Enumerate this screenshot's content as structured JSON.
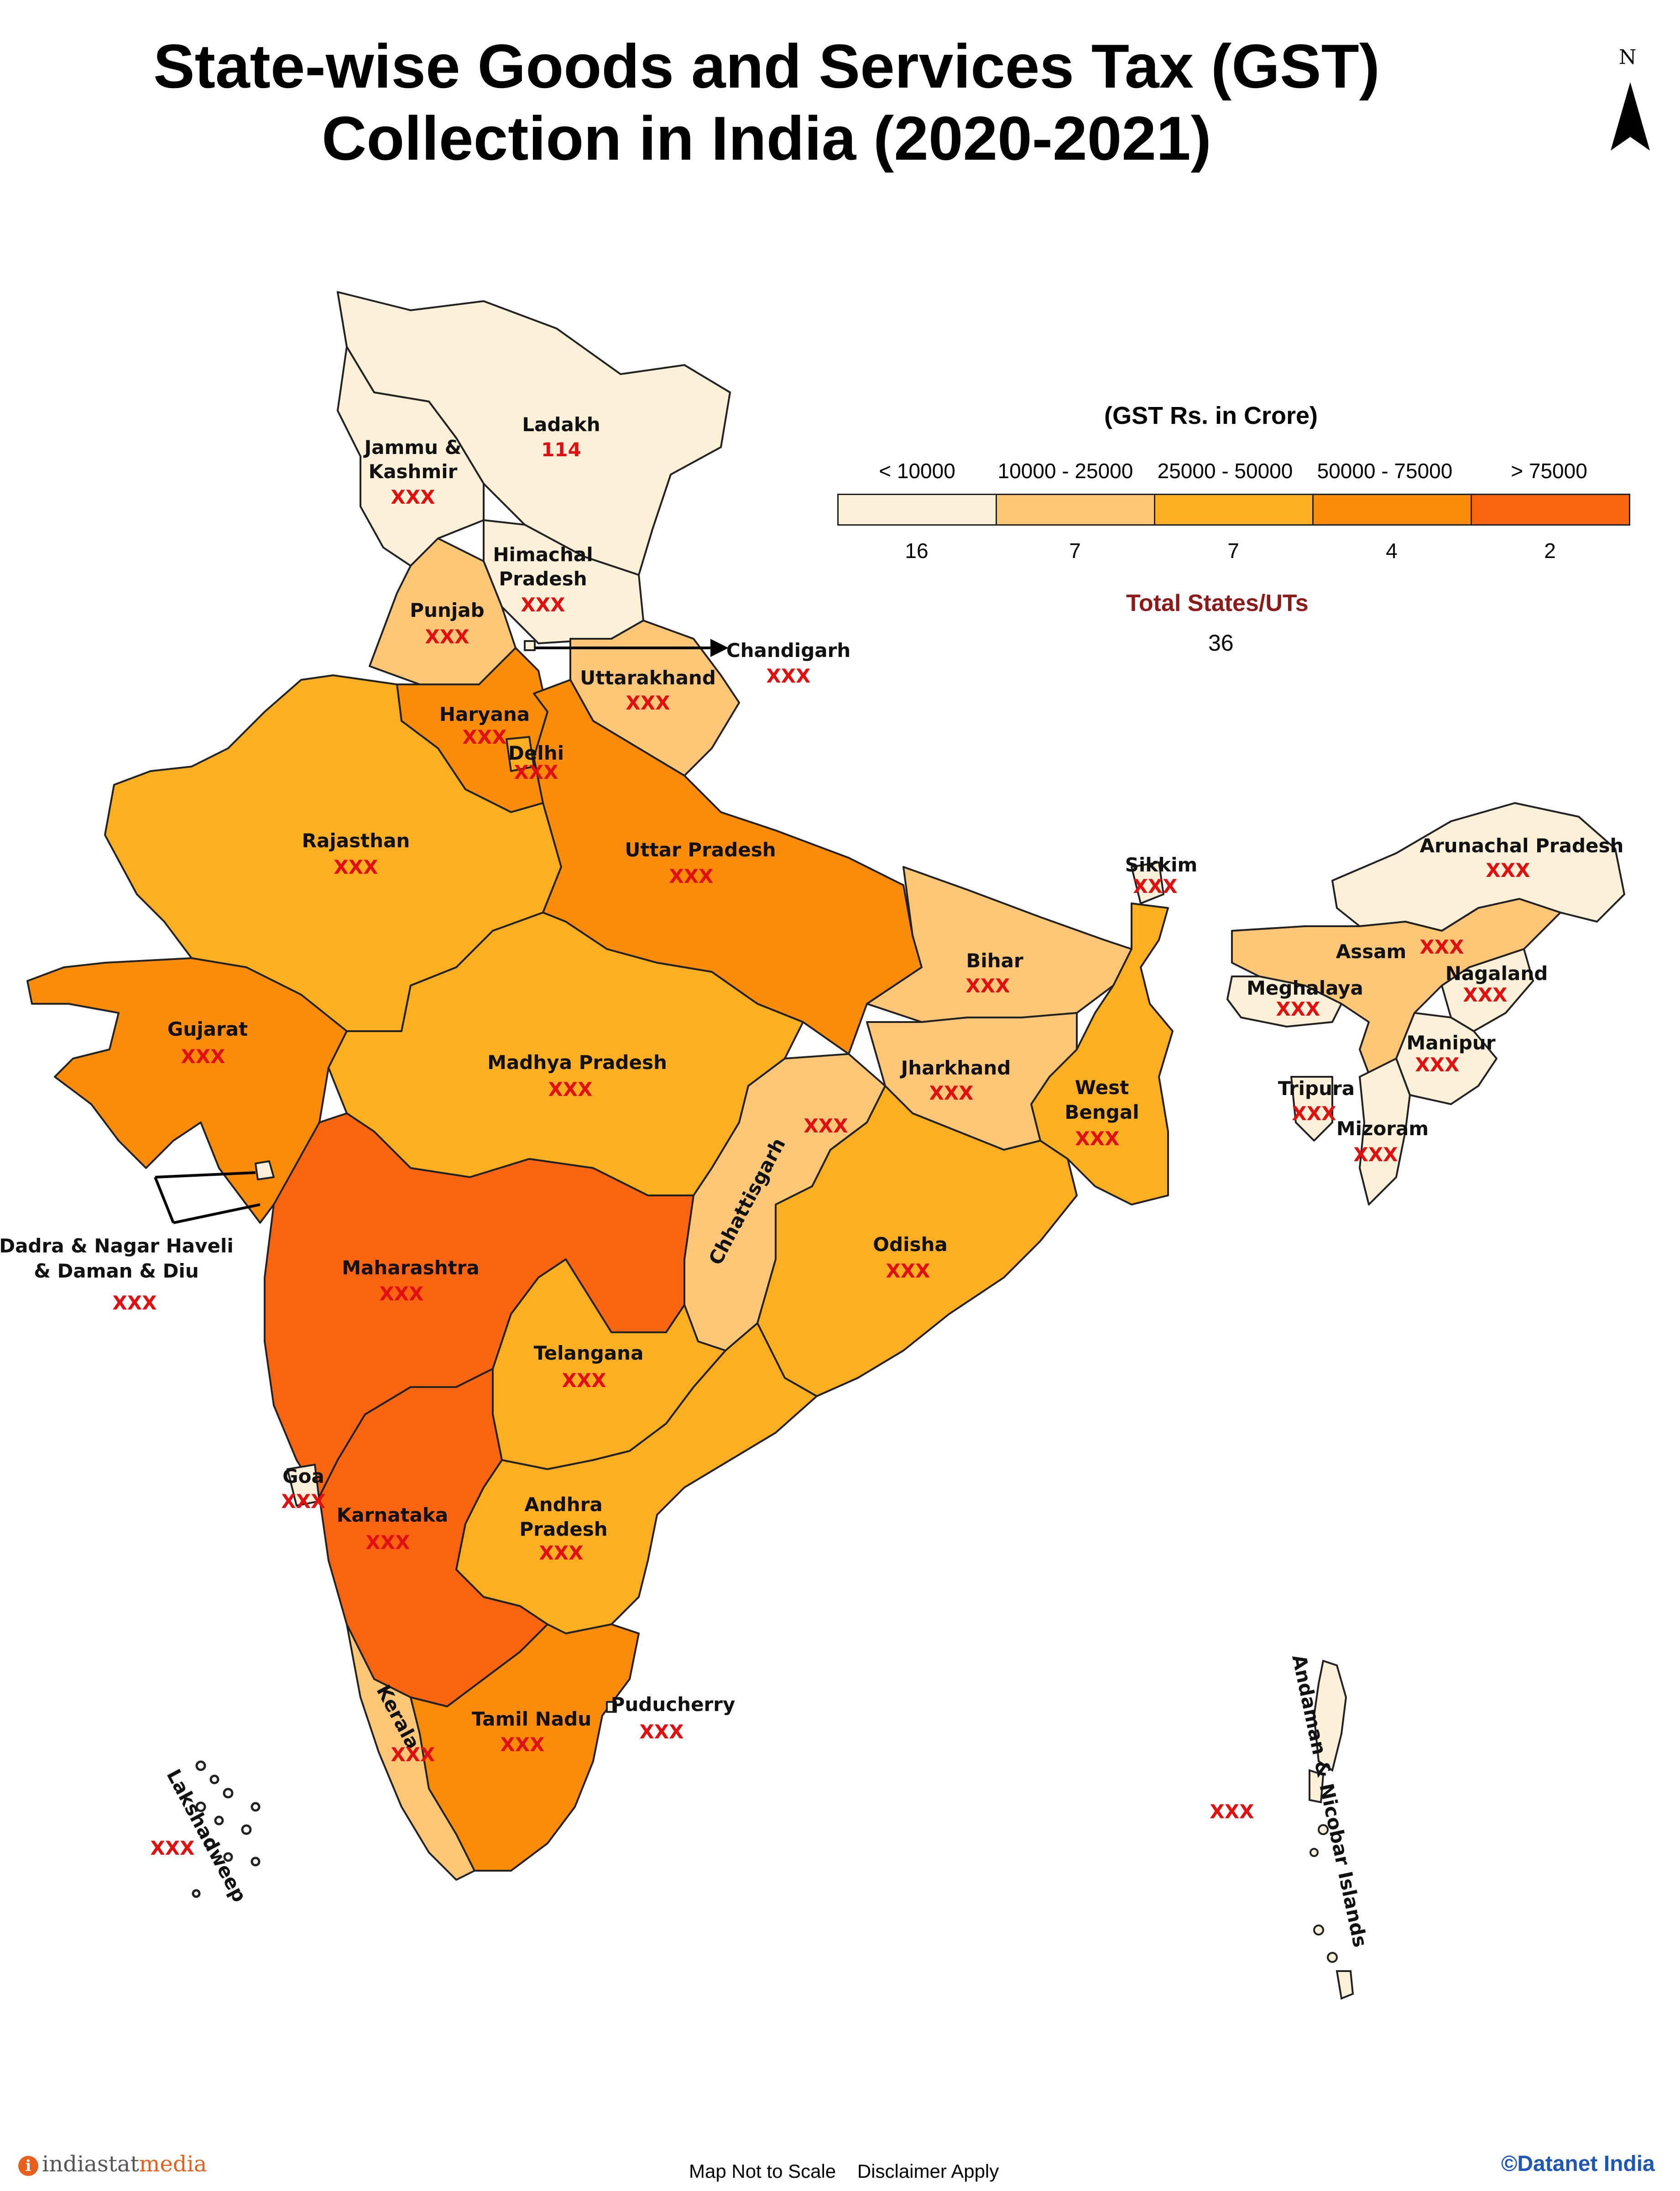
{
  "title": {
    "line1": "State-wise Goods and Services Tax (GST)",
    "line2": "Collection in India (2020-2021)"
  },
  "north_arrow": {
    "letter": "N"
  },
  "legend": {
    "title": "(GST Rs. in Crore)",
    "classes": [
      {
        "range": "< 10000",
        "count": "16",
        "color": "#fdf0d8"
      },
      {
        "range": "10000 - 25000",
        "count": "7",
        "color": "#fdc777"
      },
      {
        "range": "25000 - 50000",
        "count": "7",
        "color": "#fcaf21"
      },
      {
        "range": "50000 - 75000",
        "count": "4",
        "color": "#fb8c0a"
      },
      {
        "range": "> 75000",
        "count": "2",
        "color": "#fb6410"
      }
    ],
    "total_label": "Total States/UTs",
    "total_value": "36"
  },
  "states": [
    {
      "name_line1": "Ladakh",
      "name_line2": "",
      "value": "114",
      "class": 0
    },
    {
      "name_line1": "Jammu &",
      "name_line2": "Kashmir",
      "value": "XXX",
      "class": 0
    },
    {
      "name_line1": "Himachal",
      "name_line2": "Pradesh",
      "value": "XXX",
      "class": 0
    },
    {
      "name_line1": "Punjab",
      "name_line2": "",
      "value": "XXX",
      "class": 1
    },
    {
      "name_line1": "Chandigarh",
      "name_line2": "",
      "value": "XXX",
      "class": 0
    },
    {
      "name_line1": "Uttarakhand",
      "name_line2": "",
      "value": "XXX",
      "class": 1
    },
    {
      "name_line1": "Haryana",
      "name_line2": "",
      "value": "XXX",
      "class": 3
    },
    {
      "name_line1": "Delhi",
      "name_line2": "",
      "value": "XXX",
      "class": 2
    },
    {
      "name_line1": "Rajasthan",
      "name_line2": "",
      "value": "XXX",
      "class": 2
    },
    {
      "name_line1": "Uttar Pradesh",
      "name_line2": "",
      "value": "XXX",
      "class": 3
    },
    {
      "name_line1": "Gujarat",
      "name_line2": "",
      "value": "XXX",
      "class": 3
    },
    {
      "name_line1": "Madhya Pradesh",
      "name_line2": "",
      "value": "XXX",
      "class": 2
    },
    {
      "name_line1": "Bihar",
      "name_line2": "",
      "value": "XXX",
      "class": 1
    },
    {
      "name_line1": "Sikkim",
      "name_line2": "",
      "value": "XXX",
      "class": 0
    },
    {
      "name_line1": "Arunachal Pradesh",
      "name_line2": "",
      "value": "XXX",
      "class": 0
    },
    {
      "name_line1": "Assam",
      "name_line2": "",
      "value": "XXX",
      "class": 1
    },
    {
      "name_line1": "Nagaland",
      "name_line2": "",
      "value": "XXX",
      "class": 0
    },
    {
      "name_line1": "Meghalaya",
      "name_line2": "",
      "value": "XXX",
      "class": 0
    },
    {
      "name_line1": "Manipur",
      "name_line2": "",
      "value": "XXX",
      "class": 0
    },
    {
      "name_line1": "Tripura",
      "name_line2": "",
      "value": "XXX",
      "class": 0
    },
    {
      "name_line1": "Mizoram",
      "name_line2": "",
      "value": "XXX",
      "class": 0
    },
    {
      "name_line1": "Jharkhand",
      "name_line2": "",
      "value": "XXX",
      "class": 1
    },
    {
      "name_line1": "West",
      "name_line2": "Bengal",
      "value": "XXX",
      "class": 2
    },
    {
      "name_line1": "Chhattisgarh",
      "name_line2": "",
      "value": "XXX",
      "class": 1
    },
    {
      "name_line1": "Odisha",
      "name_line2": "",
      "value": "XXX",
      "class": 2
    },
    {
      "name_line1": "Dadra & Nagar Haveli",
      "name_line2": "& Daman & Diu",
      "value": "XXX",
      "class": 0
    },
    {
      "name_line1": "Maharashtra",
      "name_line2": "",
      "value": "XXX",
      "class": 4
    },
    {
      "name_line1": "Telangana",
      "name_line2": "",
      "value": "XXX",
      "class": 2
    },
    {
      "name_line1": "Goa",
      "name_line2": "",
      "value": "XXX",
      "class": 0
    },
    {
      "name_line1": "Karnataka",
      "name_line2": "",
      "value": "XXX",
      "class": 4
    },
    {
      "name_line1": "Andhra",
      "name_line2": "Pradesh",
      "value": "XXX",
      "class": 2
    },
    {
      "name_line1": "Kerala",
      "name_line2": "",
      "value": "XXX",
      "class": 1
    },
    {
      "name_line1": "Tamil Nadu",
      "name_line2": "",
      "value": "XXX",
      "class": 3
    },
    {
      "name_line1": "Puducherry",
      "name_line2": "",
      "value": "XXX",
      "class": 0
    },
    {
      "name_line1": "Lakshadweep",
      "name_line2": "",
      "value": "XXX",
      "class": 0
    },
    {
      "name_line1": "Andaman & Nicobar Islands",
      "name_line2": "",
      "value": "XXX",
      "class": 0
    }
  ],
  "footer": {
    "logo_icon": "i",
    "logo_main": "indiastat",
    "logo_suffix": "media",
    "note": "Map Not to Scale    Disclaimer Apply",
    "copyright": "©Datanet India"
  }
}
